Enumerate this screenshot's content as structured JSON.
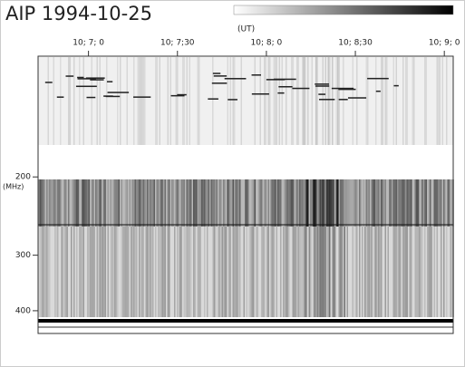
{
  "chart_data": {
    "type": "spectrogram",
    "title": "AIP 1994-10-25",
    "x_label": "(UT)",
    "y_label": "(MHz)",
    "xlim": [
      403,
      543
    ],
    "xticks": [
      {
        "value": 420,
        "label": "10; 7; 0"
      },
      {
        "value": 450,
        "label": "10; 7;30"
      },
      {
        "value": 480,
        "label": "10; 8; 0"
      },
      {
        "value": 510,
        "label": "10; 8;30"
      },
      {
        "value": 540,
        "label": "10; 9; 0"
      }
    ],
    "ylim": [
      107,
      450
    ],
    "yticks": [
      200,
      300,
      400
    ],
    "y_scale": "log",
    "y_inverted": true
  }
}
